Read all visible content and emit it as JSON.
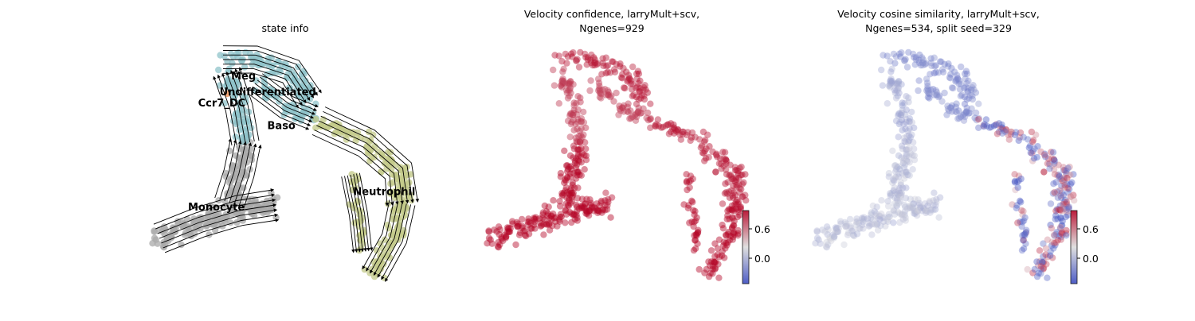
{
  "chart_data": [
    {
      "type": "scatter",
      "title": "state info",
      "subtitle": "",
      "xlabel": "",
      "ylabel": "",
      "axes_visible": false,
      "grid": false,
      "legend": "on-data labels",
      "overlay": "velocity streamlines with arrowheads",
      "colors": {
        "Meg": "#8fc3c9",
        "Undifferentiated": "#8fc3c9",
        "Ccr7_DC": "#f4a06c",
        "Baso": "#8fc3c9",
        "Monocyte": "#a9a9a9",
        "Neutrophil": "#c3c98a"
      },
      "cluster_labels": [
        {
          "name": "Meg",
          "x": 0.34,
          "y": 0.86
        },
        {
          "name": "Undifferentiated",
          "x": 0.43,
          "y": 0.79
        },
        {
          "name": "Ccr7_DC",
          "x": 0.26,
          "y": 0.74
        },
        {
          "name": "Baso",
          "x": 0.48,
          "y": 0.64
        },
        {
          "name": "Monocyte",
          "x": 0.24,
          "y": 0.28
        },
        {
          "name": "Neutrophil",
          "x": 0.86,
          "y": 0.35
        }
      ]
    },
    {
      "type": "scatter",
      "title": "Velocity confidence, larryMult+scv,",
      "subtitle": "Ngenes=929",
      "xlabel": "",
      "ylabel": "",
      "axes_visible": false,
      "grid": false,
      "colormap": "coolwarm",
      "colorbar": {
        "ticks": [
          0.0,
          0.6
        ],
        "tick_labels": [
          "0.0",
          "0.6"
        ],
        "range": [
          -0.3,
          0.8
        ]
      },
      "value_range": [
        0.5,
        0.95
      ],
      "trend": "high confidence at lower-left and lower-right branch ends"
    },
    {
      "type": "scatter",
      "title": "Velocity cosine similarity, larryMult+scv,",
      "subtitle": "Ngenes=534, split seed=329",
      "xlabel": "",
      "ylabel": "",
      "axes_visible": false,
      "grid": false,
      "colormap": "coolwarm",
      "colorbar": {
        "ticks": [
          0.0,
          0.6
        ],
        "tick_labels": [
          "0.0",
          "0.6"
        ],
        "range": [
          -0.3,
          0.8
        ]
      },
      "value_range": [
        -0.3,
        0.75
      ],
      "trend": "near zero on the left; mixed strong positive and negative values on the right branch"
    }
  ]
}
